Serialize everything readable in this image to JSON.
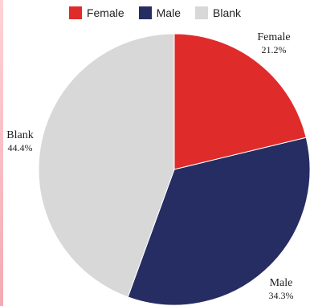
{
  "chart_data": {
    "type": "pie",
    "categories": [
      "Female",
      "Male",
      "Blank"
    ],
    "values": [
      21.2,
      34.3,
      44.4
    ],
    "value_labels": [
      "21.2%",
      "34.3%",
      "44.4%"
    ],
    "colors": [
      "#e02b2b",
      "#262d62",
      "#d8d8d8"
    ],
    "legend_position": "top",
    "start_angle": "12 o'clock",
    "direction": "clockwise"
  }
}
